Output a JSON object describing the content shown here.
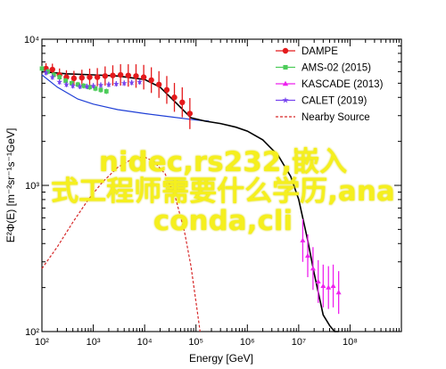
{
  "chart_data": {
    "type": "scatter",
    "xlabel": "Energy [GeV]",
    "ylabel": "E²Φ(E) [m⁻²sr⁻¹s⁻¹GeV]",
    "xscale": "log",
    "yscale": "log",
    "xlim": [
      100,
      1000000000
    ],
    "ylim": [
      100,
      10000
    ],
    "grid": false,
    "legend_position": "top-right",
    "x_tick_labels": [
      "10²",
      "10³",
      "10⁴",
      "10⁵",
      "10⁶",
      "10⁷",
      "10⁸"
    ],
    "y_tick_labels": [
      "10²",
      "10³",
      "10⁴"
    ],
    "series": [
      {
        "name": "DAMPE",
        "color": "#e41a1c",
        "marker": "circle",
        "x": [
          120,
          160,
          220,
          300,
          420,
          600,
          850,
          1200,
          1700,
          2400,
          3400,
          4800,
          6800,
          9600,
          13500,
          19000,
          27000,
          38000,
          54000,
          76000
        ],
        "y": [
          6300,
          6200,
          5700,
          5500,
          5400,
          5450,
          5500,
          5500,
          5600,
          5650,
          5700,
          5650,
          5600,
          5500,
          5250,
          4900,
          4500,
          4000,
          3700,
          3100
        ]
      },
      {
        "name": "AMS-02 (2015)",
        "color": "#4dcc5a",
        "marker": "square",
        "x": [
          100,
          130,
          170,
          220,
          290,
          380,
          500,
          650,
          850,
          1100,
          1400,
          1800
        ],
        "y": [
          6300,
          6000,
          5700,
          5500,
          5200,
          5000,
          4900,
          4800,
          4700,
          4600,
          4500,
          4400
        ]
      },
      {
        "name": "KASCADE (2013)",
        "color": "#ee22ee",
        "marker": "triangle",
        "x": [
          12000000,
          15000000,
          19000000,
          24000000,
          30000000,
          38000000,
          47000000,
          60000000
        ],
        "y": [
          420,
          330,
          270,
          220,
          205,
          200,
          205,
          185
        ]
      },
      {
        "name": "CALET (2019)",
        "color": "#7744ee",
        "marker": "star",
        "x": [
          120,
          160,
          220,
          300,
          400,
          550,
          750,
          1000,
          1400,
          2000,
          2800,
          4000,
          5600,
          8000
        ],
        "y": [
          5900,
          5500,
          5100,
          4900,
          4800,
          4750,
          4750,
          4800,
          4850,
          4900,
          4950,
          5000,
          5050,
          5100
        ]
      },
      {
        "name": "Nearby Source",
        "color": "#d62728",
        "style": "dashed",
        "x": [
          100,
          200,
          400,
          800,
          1500,
          3000,
          6000,
          10000,
          15000,
          25000,
          40000,
          60000,
          80000,
          100000,
          120000
        ],
        "y": [
          270,
          380,
          560,
          800,
          1050,
          1330,
          1530,
          1560,
          1460,
          1200,
          820,
          480,
          280,
          160,
          100
        ]
      },
      {
        "name": "",
        "color": "#1f3fd6",
        "style": "solid",
        "x": [
          100,
          200,
          500,
          1000,
          3000,
          10000,
          30000,
          100000,
          180000
        ],
        "y": [
          5700,
          4700,
          3900,
          3600,
          3300,
          3100,
          2950,
          2800,
          2750
        ]
      },
      {
        "name": "",
        "color": "#000000",
        "style": "solid",
        "x": [
          100,
          300,
          1000,
          3000,
          10000,
          20000,
          40000,
          80000,
          150000,
          300000,
          600000,
          1000000,
          2000000,
          4000000,
          7000000,
          10000000,
          15000000,
          20000000,
          30000000,
          40000000,
          50000000,
          60000000
        ],
        "y": [
          6000,
          5800,
          5700,
          5600,
          5300,
          4700,
          3700,
          2900,
          2750,
          2650,
          2500,
          2350,
          2050,
          1600,
          1150,
          800,
          420,
          250,
          130,
          110,
          100,
          100
        ]
      }
    ]
  },
  "overlay_text": {
    "line1": "nidec,rs232,嵌入",
    "line2": "式工程师需要什么学历,ana",
    "line3": "conda,cli"
  }
}
